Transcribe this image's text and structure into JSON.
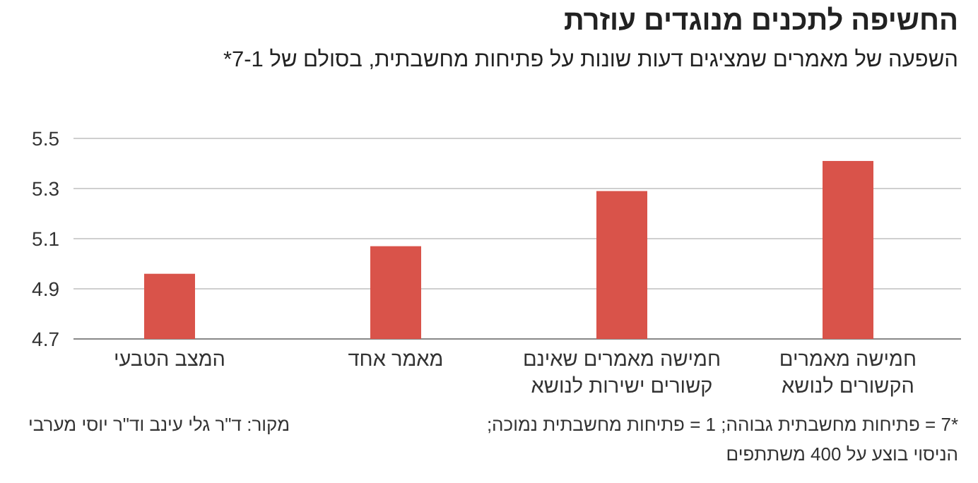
{
  "chart_data": {
    "type": "bar",
    "title": "החשיפה לתכנים מנוגדים עוזרת",
    "subtitle": "השפעה של מאמרים שמציגים דעות שונות על פתיחות מחשבתית, בסולם של 7-1*",
    "categories": [
      "המצב הטבעי",
      "מאמר אחד",
      "חמישה מאמרים שאינם קשורים ישירות לנושא",
      "חמישה מאמרים הקשורים לנושא"
    ],
    "values": [
      4.96,
      5.07,
      5.29,
      5.41
    ],
    "color": "#d9534a",
    "ylim": [
      4.7,
      5.5
    ],
    "yticks": [
      4.7,
      4.9,
      5.1,
      5.3,
      5.5
    ],
    "grid": "y",
    "annotations": [
      "*7 = פתיחות מחשבתית גבוהה; 1 = פתיחות מחשבתית נמוכה;",
      "הניסוי בוצע על 400 משתתפים",
      "מקור: ד\"ר גלי עינב וד\"ר יוסי מערבי"
    ]
  }
}
